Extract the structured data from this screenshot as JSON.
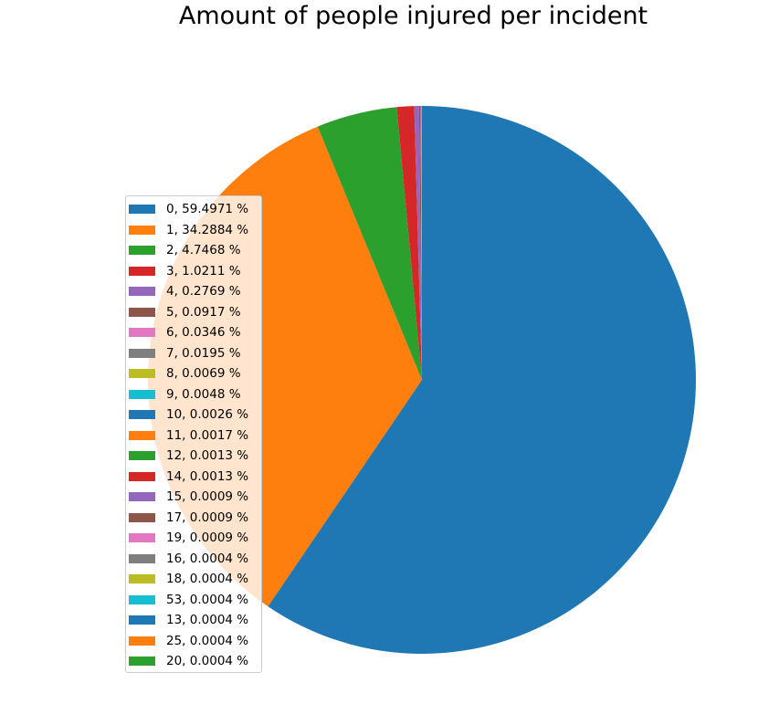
{
  "chart_data": {
    "type": "pie",
    "title": "Amount of people injured per incident",
    "start_angle_deg": 90,
    "direction": "clockwise",
    "slices": [
      {
        "label": "0",
        "value": 59.4971,
        "color": "#1f77b4"
      },
      {
        "label": "1",
        "value": 34.2884,
        "color": "#ff7f0e"
      },
      {
        "label": "2",
        "value": 4.7468,
        "color": "#2ca02c"
      },
      {
        "label": "3",
        "value": 1.0211,
        "color": "#d62728"
      },
      {
        "label": "4",
        "value": 0.2769,
        "color": "#9467bd"
      },
      {
        "label": "5",
        "value": 0.0917,
        "color": "#8c564b"
      },
      {
        "label": "6",
        "value": 0.0346,
        "color": "#e377c2"
      },
      {
        "label": "7",
        "value": 0.0195,
        "color": "#7f7f7f"
      },
      {
        "label": "8",
        "value": 0.0069,
        "color": "#bcbd22"
      },
      {
        "label": "9",
        "value": 0.0048,
        "color": "#17becf"
      },
      {
        "label": "10",
        "value": 0.0026,
        "color": "#1f77b4"
      },
      {
        "label": "11",
        "value": 0.0017,
        "color": "#ff7f0e"
      },
      {
        "label": "12",
        "value": 0.0013,
        "color": "#2ca02c"
      },
      {
        "label": "14",
        "value": 0.0013,
        "color": "#d62728"
      },
      {
        "label": "15",
        "value": 0.0009,
        "color": "#9467bd"
      },
      {
        "label": "17",
        "value": 0.0009,
        "color": "#8c564b"
      },
      {
        "label": "19",
        "value": 0.0009,
        "color": "#e377c2"
      },
      {
        "label": "16",
        "value": 0.0004,
        "color": "#7f7f7f"
      },
      {
        "label": "18",
        "value": 0.0004,
        "color": "#bcbd22"
      },
      {
        "label": "53",
        "value": 0.0004,
        "color": "#17becf"
      },
      {
        "label": "13",
        "value": 0.0004,
        "color": "#1f77b4"
      },
      {
        "label": "25",
        "value": 0.0004,
        "color": "#ff7f0e"
      },
      {
        "label": "20",
        "value": 0.0004,
        "color": "#2ca02c"
      }
    ],
    "legend": {
      "placement": "left",
      "entries": [
        "0, 59.4971 %",
        "1, 34.2884 %",
        "2, 4.7468 %",
        "3, 1.0211 %",
        "4, 0.2769 %",
        "5, 0.0917 %",
        "6, 0.0346 %",
        "7, 0.0195 %",
        "8, 0.0069 %",
        "9, 0.0048 %",
        "10, 0.0026 %",
        "11, 0.0017 %",
        "12, 0.0013 %",
        "14, 0.0013 %",
        "15, 0.0009 %",
        "17, 0.0009 %",
        "19, 0.0009 %",
        "16, 0.0004 %",
        "18, 0.0004 %",
        "53, 0.0004 %",
        "13, 0.0004 %",
        "25, 0.0004 %",
        "20, 0.0004 %"
      ]
    }
  }
}
